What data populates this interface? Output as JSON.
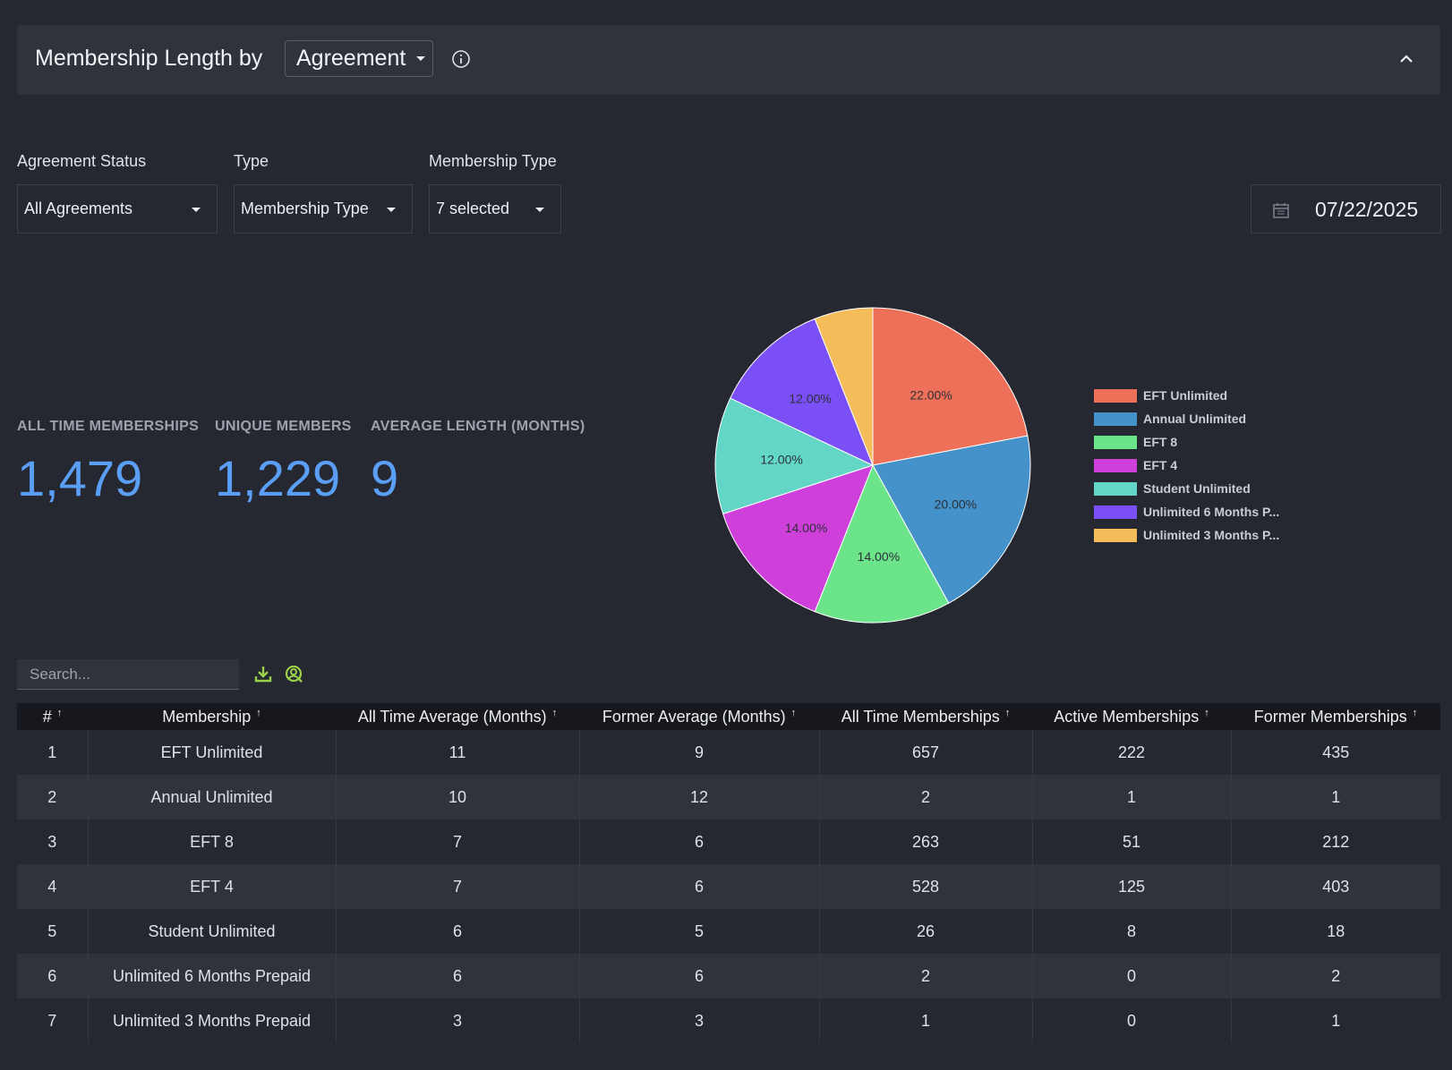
{
  "header": {
    "title": "Membership Length by",
    "group_by": "Agreement"
  },
  "filters": {
    "agreement_status": {
      "label": "Agreement Status",
      "value": "All Agreements"
    },
    "type": {
      "label": "Type",
      "value": "Membership Type"
    },
    "membership_type": {
      "label": "Membership Type",
      "value": "7 selected"
    },
    "date": "07/22/2025"
  },
  "stats": {
    "all_time_memberships": {
      "label": "ALL TIME MEMBERSHIPS",
      "value": "1,479"
    },
    "unique_members": {
      "label": "UNIQUE MEMBERS",
      "value": "1,229"
    },
    "average_length": {
      "label": "AVERAGE LENGTH (MONTHS)",
      "value": "9"
    }
  },
  "chart_data": {
    "type": "pie",
    "categories": [
      "EFT Unlimited",
      "Annual Unlimited",
      "EFT 8",
      "EFT 4",
      "Student Unlimited",
      "Unlimited 6 Months Prepaid",
      "Unlimited 3 Months Prepaid"
    ],
    "legend_labels": [
      "EFT Unlimited",
      "Annual Unlimited",
      "EFT 8",
      "EFT 4",
      "Student Unlimited",
      "Unlimited 6 Months P...",
      "Unlimited 3 Months P..."
    ],
    "values": [
      22,
      20,
      14,
      14,
      12,
      12,
      6
    ],
    "labels": [
      "22.00%",
      "20.00%",
      "14.00%",
      "14.00%",
      "12.00%",
      "12.00%",
      ""
    ],
    "colors": [
      "#ef7058",
      "#4591c9",
      "#6ce58a",
      "#cf40db",
      "#63d6c7",
      "#7a4ff5",
      "#f5bd5a"
    ],
    "legend_position": "right"
  },
  "table": {
    "search_placeholder": "Search...",
    "columns": [
      "#",
      "Membership",
      "All Time Average (Months)",
      "Former Average (Months)",
      "All Time Memberships",
      "Active Memberships",
      "Former Memberships"
    ],
    "rows": [
      [
        "1",
        "EFT Unlimited",
        "11",
        "9",
        "657",
        "222",
        "435"
      ],
      [
        "2",
        "Annual Unlimited",
        "10",
        "12",
        "2",
        "1",
        "1"
      ],
      [
        "3",
        "EFT 8",
        "7",
        "6",
        "263",
        "51",
        "212"
      ],
      [
        "4",
        "EFT 4",
        "7",
        "6",
        "528",
        "125",
        "403"
      ],
      [
        "5",
        "Student Unlimited",
        "6",
        "5",
        "26",
        "8",
        "18"
      ],
      [
        "6",
        "Unlimited 6 Months Prepaid",
        "6",
        "6",
        "2",
        "0",
        "2"
      ],
      [
        "7",
        "Unlimited 3 Months Prepaid",
        "3",
        "3",
        "1",
        "0",
        "1"
      ]
    ]
  }
}
